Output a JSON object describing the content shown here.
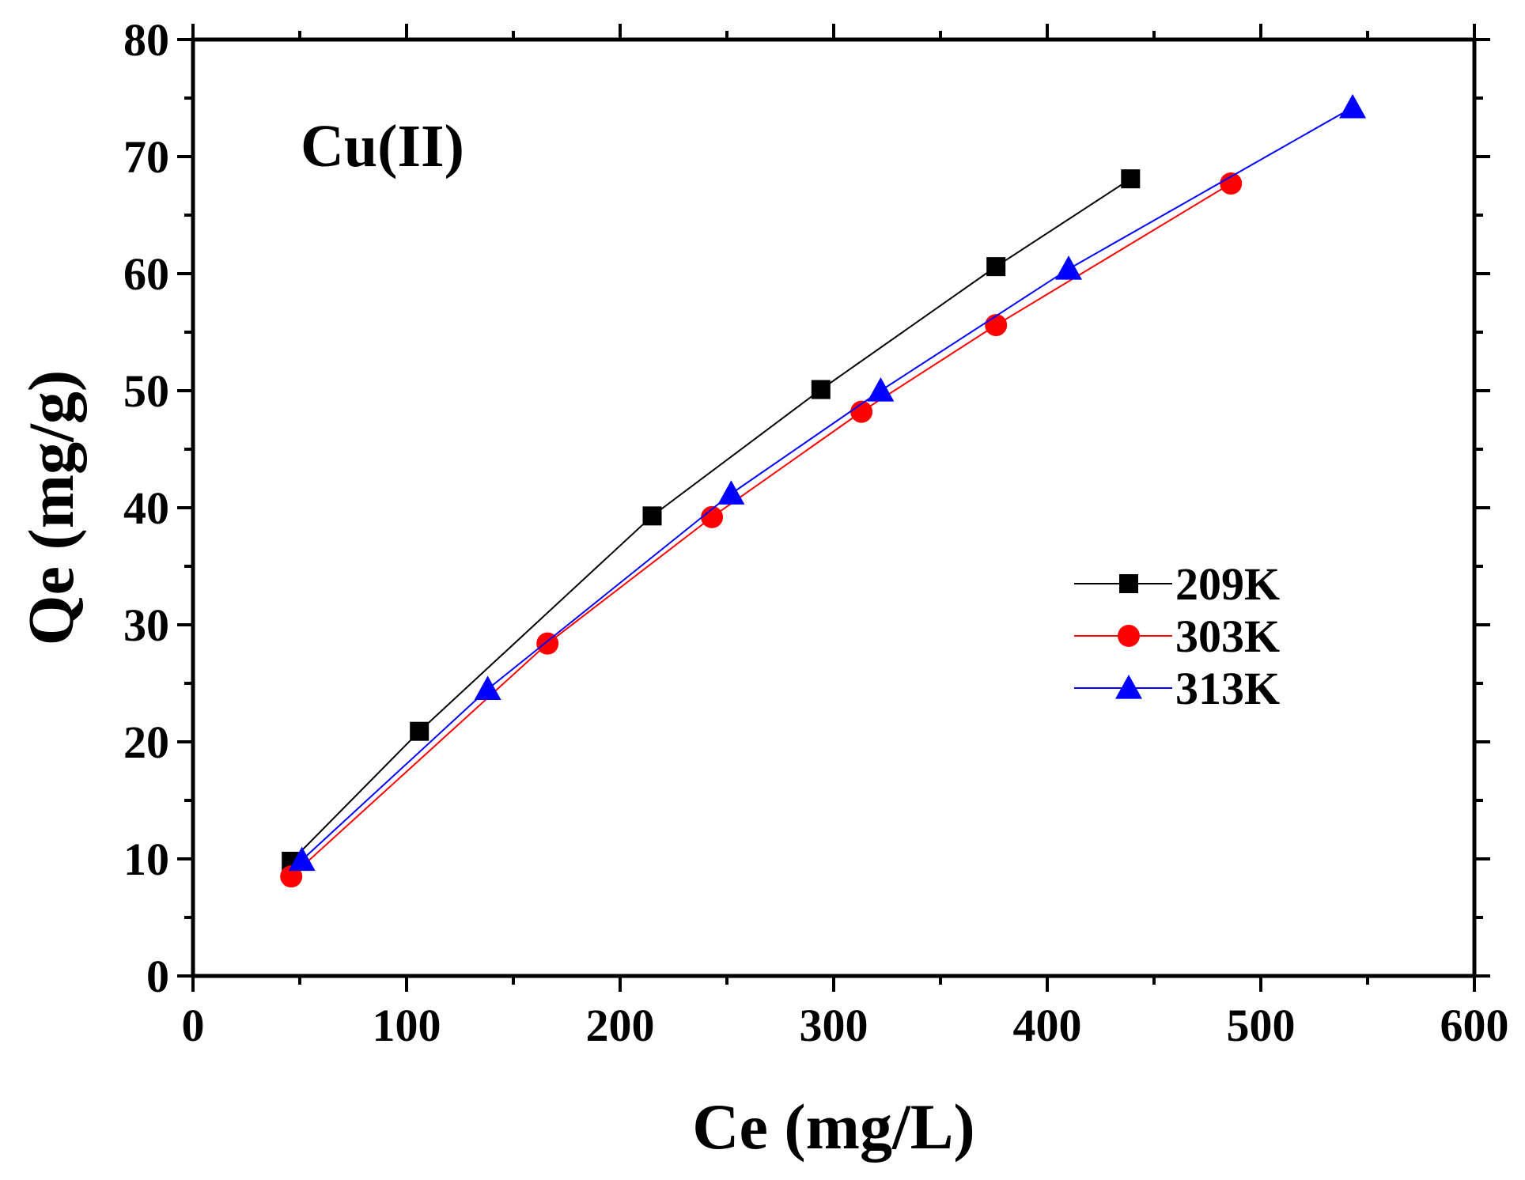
{
  "chart_data": {
    "type": "line",
    "title": "",
    "annotation": "Cu(II)",
    "xlabel": "Ce (mg/L)",
    "ylabel": "Qe (mg/g)",
    "xlim": [
      0,
      600
    ],
    "ylim": [
      0,
      80
    ],
    "xticks": [
      0,
      100,
      200,
      300,
      400,
      500,
      600
    ],
    "xtick_labels": [
      "0",
      "100",
      "200",
      "300",
      "400",
      "500",
      "600"
    ],
    "yticks": [
      0,
      10,
      20,
      30,
      40,
      50,
      60,
      70,
      80
    ],
    "ytick_labels": [
      "0",
      "10",
      "20",
      "30",
      "40",
      "50",
      "60",
      "70",
      "80"
    ],
    "grid": false,
    "legend_position": "right-middle",
    "series": [
      {
        "name": "209K",
        "color": "#000000",
        "marker": "square",
        "x": [
          46,
          106,
          215,
          294,
          376,
          439
        ],
        "y": [
          9.8,
          20.9,
          39.3,
          50.1,
          60.6,
          68.1
        ]
      },
      {
        "name": "303K",
        "color": "#ff0000",
        "marker": "circle",
        "x": [
          46,
          166,
          243,
          313,
          376,
          486
        ],
        "y": [
          8.5,
          28.4,
          39.2,
          48.2,
          55.6,
          67.7
        ]
      },
      {
        "name": "313K",
        "color": "#0000ff",
        "marker": "triangle",
        "x": [
          51,
          138,
          252,
          322,
          410,
          543
        ],
        "y": [
          9.9,
          24.5,
          41.2,
          50.0,
          60.4,
          74.2
        ]
      }
    ]
  }
}
